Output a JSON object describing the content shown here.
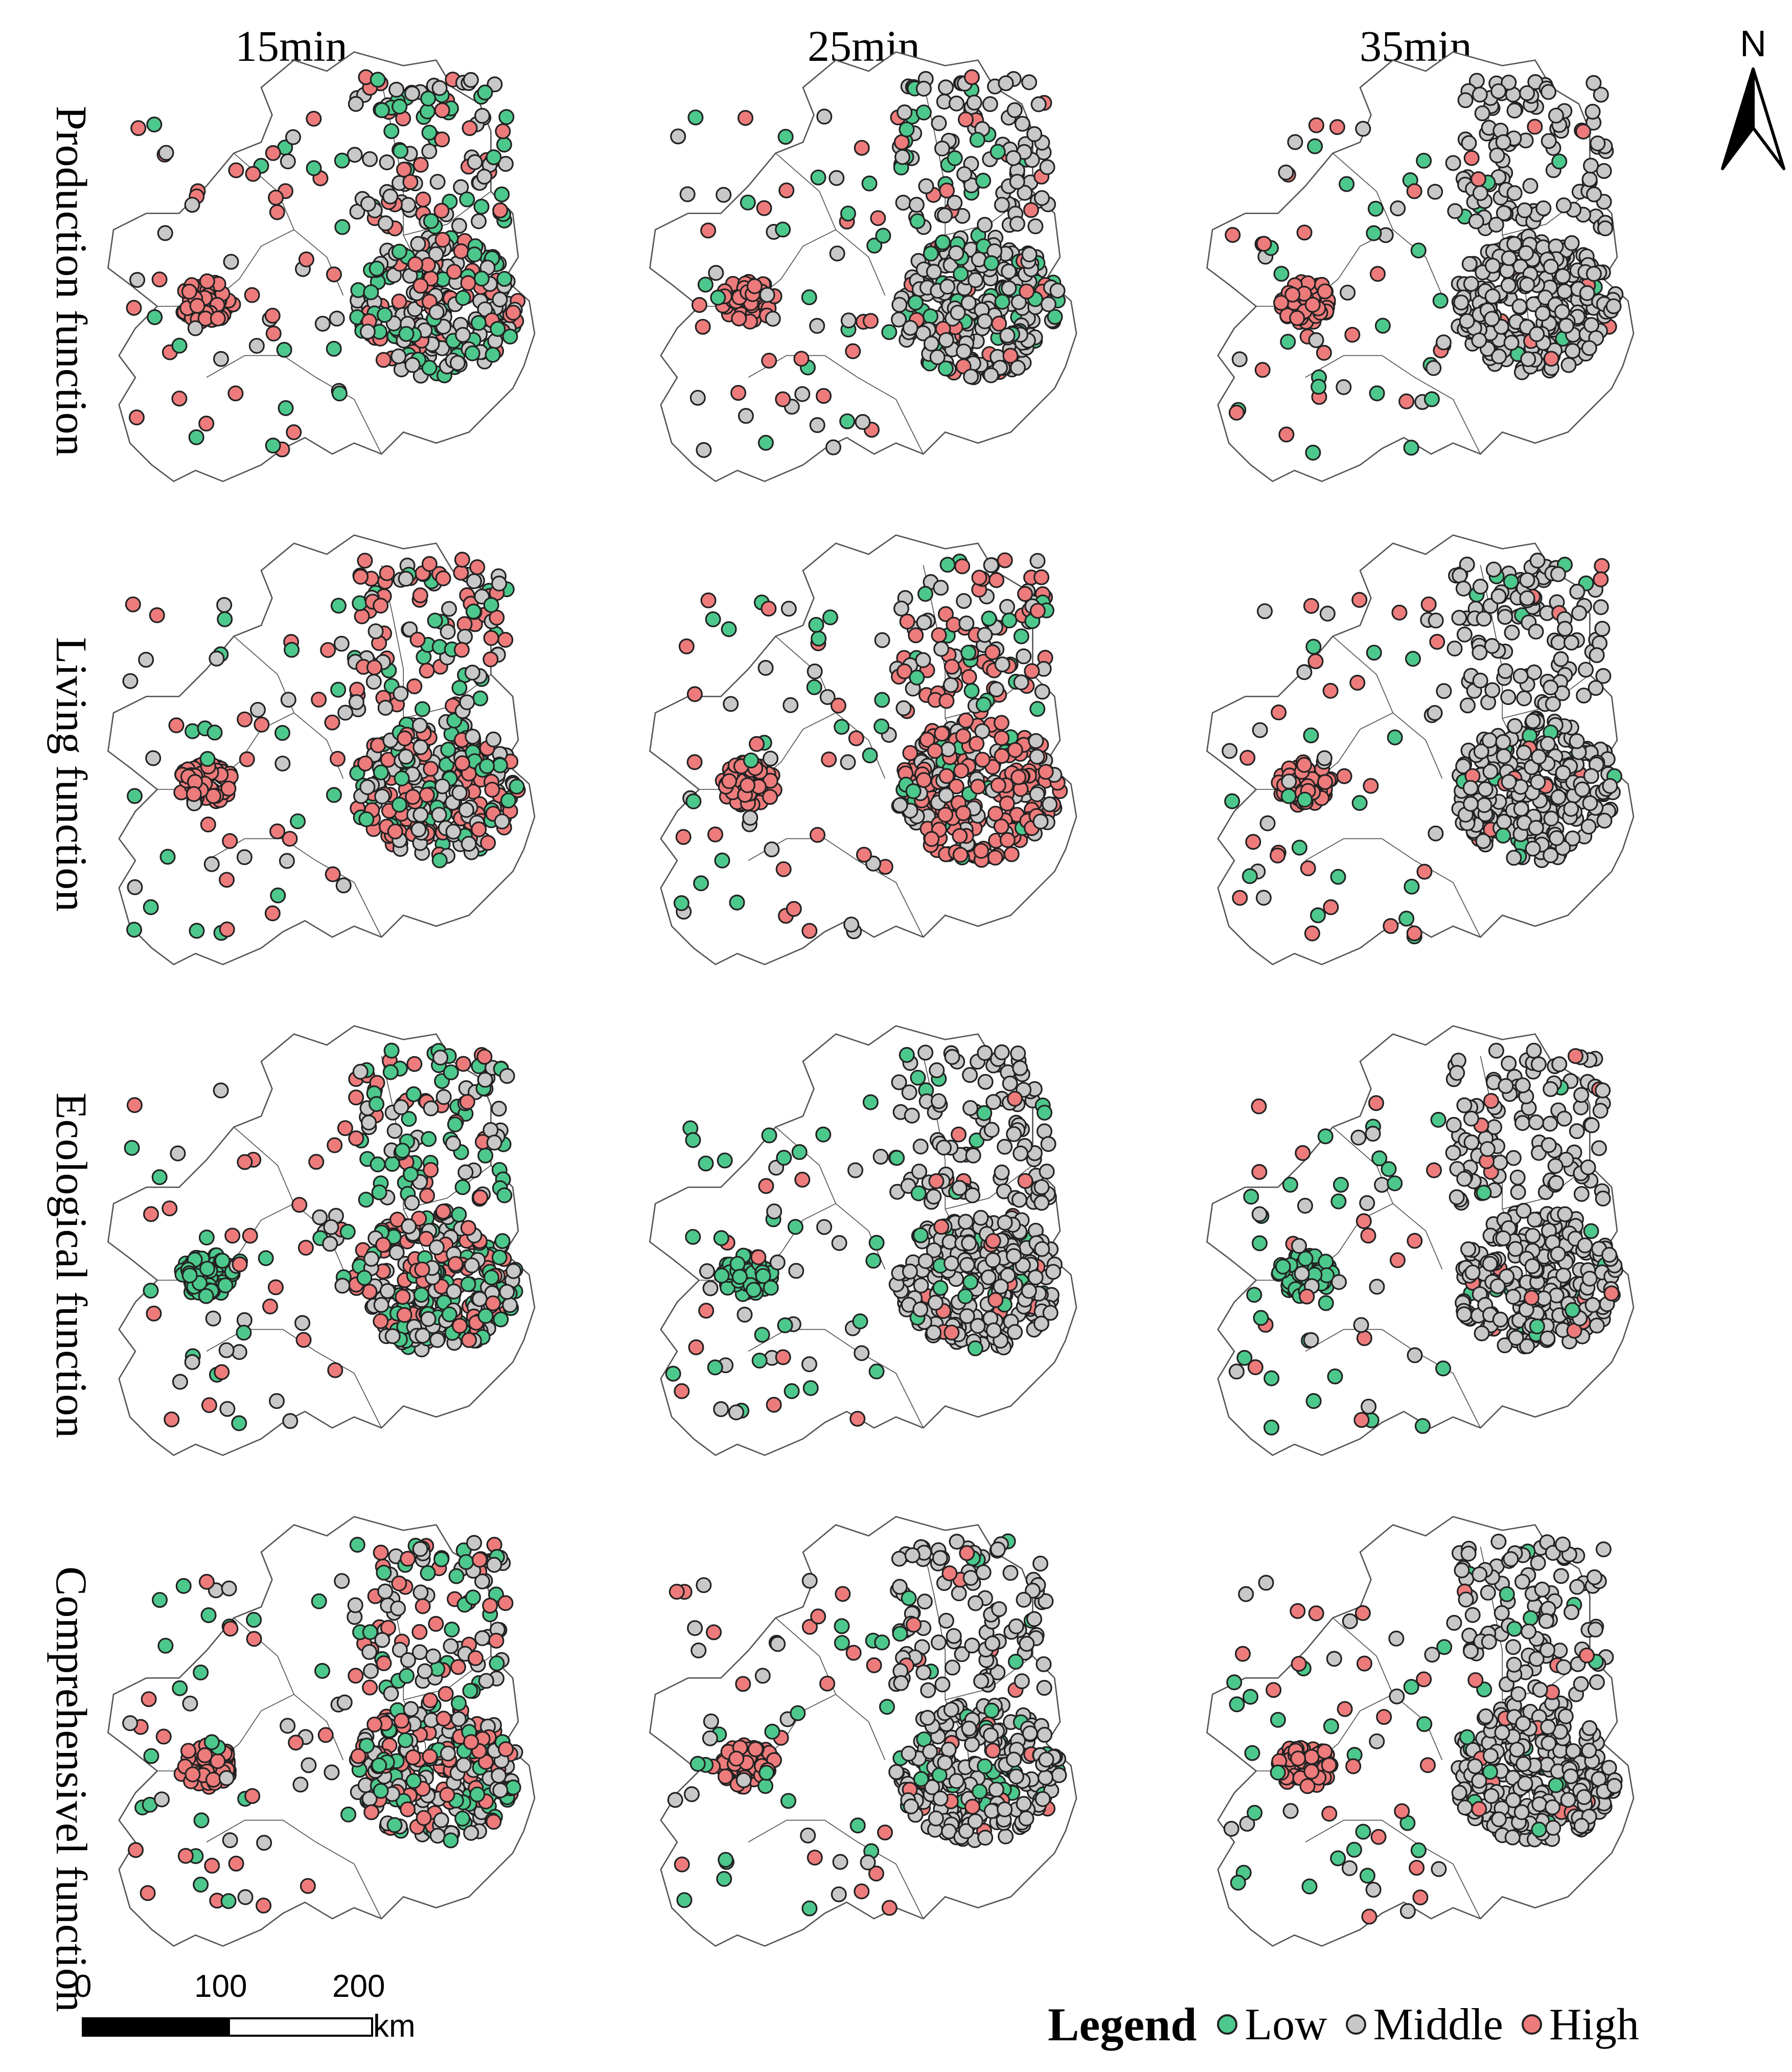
{
  "columns": [
    "15min",
    "25min",
    "35min"
  ],
  "rows": [
    "Production function",
    "Living function",
    "Ecological function",
    "Comprehensivel function"
  ],
  "north_label": "N",
  "scale": {
    "ticks": [
      "0",
      "100",
      "200"
    ],
    "unit": "km"
  },
  "legend": {
    "title": "Legend",
    "items": [
      {
        "label": "Low",
        "color": "#4dc88c"
      },
      {
        "label": "Middle",
        "color": "#c8c8c8"
      },
      {
        "label": "High",
        "color": "#ee7b7b"
      }
    ]
  },
  "map_data": {
    "point_outline_color": "#222222",
    "boundary_color": "#555555",
    "panels": [
      {
        "row": "Production function",
        "column": "15min",
        "west_cluster": "High",
        "east_cluster_mix": {
          "Low": 0.3,
          "Middle": 0.45,
          "High": 0.25
        }
      },
      {
        "row": "Production function",
        "column": "25min",
        "west_cluster": "High",
        "east_cluster_mix": {
          "Low": 0.15,
          "Middle": 0.7,
          "High": 0.15
        }
      },
      {
        "row": "Production function",
        "column": "35min",
        "west_cluster": "High",
        "east_cluster_mix": {
          "Low": 0.03,
          "Middle": 0.92,
          "High": 0.05
        }
      },
      {
        "row": "Living function",
        "column": "15min",
        "west_cluster": "High",
        "east_cluster_mix": {
          "Low": 0.25,
          "Middle": 0.35,
          "High": 0.4
        }
      },
      {
        "row": "Living function",
        "column": "25min",
        "west_cluster": "High",
        "east_cluster_mix": {
          "Low": 0.1,
          "Middle": 0.25,
          "High": 0.65
        }
      },
      {
        "row": "Living function",
        "column": "35min",
        "west_cluster": "High",
        "east_cluster_mix": {
          "Low": 0.05,
          "Middle": 0.92,
          "High": 0.03
        }
      },
      {
        "row": "Ecological function",
        "column": "15min",
        "west_cluster": "Low",
        "east_cluster_mix": {
          "Low": 0.3,
          "Middle": 0.4,
          "High": 0.3
        }
      },
      {
        "row": "Ecological function",
        "column": "25min",
        "west_cluster": "Low",
        "east_cluster_mix": {
          "Low": 0.1,
          "Middle": 0.85,
          "High": 0.05
        }
      },
      {
        "row": "Ecological function",
        "column": "35min",
        "west_cluster": "Low",
        "east_cluster_mix": {
          "Low": 0.05,
          "Middle": 0.9,
          "High": 0.05
        }
      },
      {
        "row": "Comprehensivel function",
        "column": "15min",
        "west_cluster": "High",
        "east_cluster_mix": {
          "Low": 0.3,
          "Middle": 0.35,
          "High": 0.35
        }
      },
      {
        "row": "Comprehensivel function",
        "column": "25min",
        "west_cluster": "High",
        "east_cluster_mix": {
          "Low": 0.1,
          "Middle": 0.8,
          "High": 0.1
        }
      },
      {
        "row": "Comprehensivel function",
        "column": "35min",
        "west_cluster": "High",
        "east_cluster_mix": {
          "Low": 0.05,
          "Middle": 0.9,
          "High": 0.05
        }
      }
    ]
  }
}
